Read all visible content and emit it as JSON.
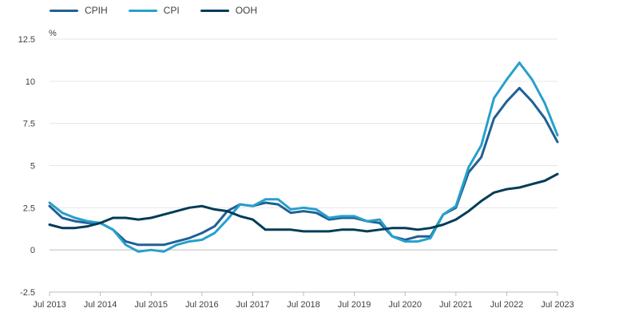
{
  "chart_data": {
    "type": "line",
    "title": "",
    "xlabel": "",
    "ylabel": "%",
    "ylim": [
      -2.5,
      12.5
    ],
    "yticks": [
      "12.5",
      "10",
      "7.5",
      "5",
      "2.5",
      "0",
      "-2.5"
    ],
    "ytick_values": [
      12.5,
      10,
      7.5,
      5,
      2.5,
      0,
      -2.5
    ],
    "xticks": [
      "Jul 2013",
      "Jul 2014",
      "Jul 2015",
      "Jul 2016",
      "Jul 2017",
      "Jul 2018",
      "Jul 2019",
      "Jul 2020",
      "Jul 2021",
      "Jul 2022",
      "Jul 2023"
    ],
    "xtick_values": [
      2013.5,
      2014.5,
      2015.5,
      2016.5,
      2017.5,
      2018.5,
      2019.5,
      2020.5,
      2021.5,
      2022.5,
      2023.5
    ],
    "xlim": [
      2013.5,
      2023.5
    ],
    "grid": "horizontal",
    "legend_position": "top-left",
    "series": [
      {
        "name": "CPIH",
        "color": "#206095",
        "x": [
          2013.5,
          2013.75,
          2014.0,
          2014.25,
          2014.5,
          2014.75,
          2015.0,
          2015.25,
          2015.5,
          2015.75,
          2016.0,
          2016.25,
          2016.5,
          2016.75,
          2017.0,
          2017.25,
          2017.5,
          2017.75,
          2018.0,
          2018.25,
          2018.5,
          2018.75,
          2019.0,
          2019.25,
          2019.5,
          2019.75,
          2020.0,
          2020.25,
          2020.5,
          2020.75,
          2021.0,
          2021.25,
          2021.5,
          2021.75,
          2022.0,
          2022.25,
          2022.5,
          2022.75,
          2023.0,
          2023.25,
          2023.5
        ],
        "values": [
          2.6,
          1.9,
          1.7,
          1.6,
          1.6,
          1.2,
          0.5,
          0.3,
          0.3,
          0.3,
          0.5,
          0.7,
          1.0,
          1.4,
          2.3,
          2.7,
          2.6,
          2.8,
          2.7,
          2.2,
          2.3,
          2.2,
          1.8,
          1.9,
          1.9,
          1.7,
          1.6,
          0.8,
          0.6,
          0.8,
          0.8,
          2.1,
          2.5,
          4.6,
          5.5,
          7.8,
          8.8,
          9.6,
          8.8,
          7.8,
          6.4
        ]
      },
      {
        "name": "CPI",
        "color": "#27a0cc",
        "x": [
          2013.5,
          2013.75,
          2014.0,
          2014.25,
          2014.5,
          2014.75,
          2015.0,
          2015.25,
          2015.5,
          2015.75,
          2016.0,
          2016.25,
          2016.5,
          2016.75,
          2017.0,
          2017.25,
          2017.5,
          2017.75,
          2018.0,
          2018.25,
          2018.5,
          2018.75,
          2019.0,
          2019.25,
          2019.5,
          2019.75,
          2020.0,
          2020.25,
          2020.5,
          2020.75,
          2021.0,
          2021.25,
          2021.5,
          2021.75,
          2022.0,
          2022.25,
          2022.5,
          2022.75,
          2023.0,
          2023.25,
          2023.5
        ],
        "values": [
          2.8,
          2.2,
          1.9,
          1.7,
          1.6,
          1.2,
          0.3,
          -0.1,
          0.0,
          -0.1,
          0.3,
          0.5,
          0.6,
          1.0,
          1.8,
          2.7,
          2.6,
          3.0,
          3.0,
          2.4,
          2.5,
          2.4,
          1.9,
          2.0,
          2.0,
          1.7,
          1.8,
          0.8,
          0.5,
          0.5,
          0.7,
          2.1,
          2.6,
          4.9,
          6.2,
          9.0,
          10.1,
          11.1,
          10.1,
          8.7,
          6.8
        ]
      },
      {
        "name": "OOH",
        "color": "#003c57",
        "x": [
          2013.5,
          2013.75,
          2014.0,
          2014.25,
          2014.5,
          2014.75,
          2015.0,
          2015.25,
          2015.5,
          2015.75,
          2016.0,
          2016.25,
          2016.5,
          2016.75,
          2017.0,
          2017.25,
          2017.5,
          2017.75,
          2018.0,
          2018.25,
          2018.5,
          2018.75,
          2019.0,
          2019.25,
          2019.5,
          2019.75,
          2020.0,
          2020.25,
          2020.5,
          2020.75,
          2021.0,
          2021.25,
          2021.5,
          2021.75,
          2022.0,
          2022.25,
          2022.5,
          2022.75,
          2023.0,
          2023.25,
          2023.5
        ],
        "values": [
          1.5,
          1.3,
          1.3,
          1.4,
          1.6,
          1.9,
          1.9,
          1.8,
          1.9,
          2.1,
          2.3,
          2.5,
          2.6,
          2.4,
          2.3,
          2.0,
          1.8,
          1.2,
          1.2,
          1.2,
          1.1,
          1.1,
          1.1,
          1.2,
          1.2,
          1.1,
          1.2,
          1.3,
          1.3,
          1.2,
          1.3,
          1.5,
          1.8,
          2.3,
          2.9,
          3.4,
          3.6,
          3.7,
          3.9,
          4.1,
          4.5
        ]
      }
    ]
  }
}
